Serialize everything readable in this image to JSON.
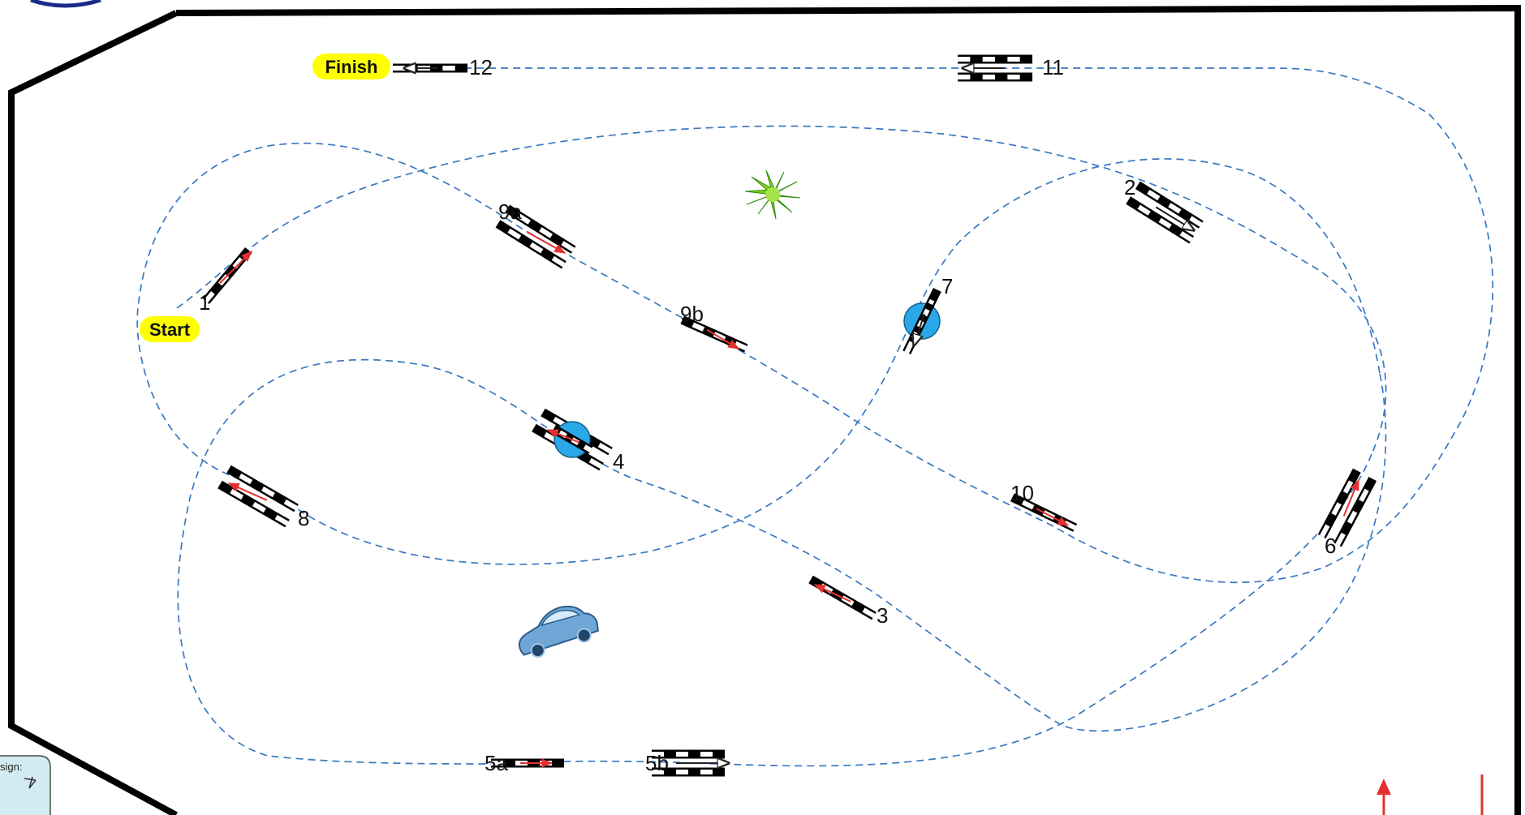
{
  "course": {
    "start_label": "Start",
    "finish_label": "Finish",
    "pill_color": "#ffff00",
    "path_color": "#3a78c2",
    "boundary_color": "#000000",
    "arrow_red": "#e53030",
    "arrow_black": "#222222",
    "pylon_color": "#2aa7e8"
  },
  "gates": [
    {
      "id": "1",
      "label": "1",
      "type": "single",
      "arrow": "red"
    },
    {
      "id": "2",
      "label": "2",
      "type": "double",
      "arrow": "black"
    },
    {
      "id": "3",
      "label": "3",
      "type": "single",
      "arrow": "red"
    },
    {
      "id": "4",
      "label": "4",
      "type": "double-pylon",
      "arrow": "red"
    },
    {
      "id": "5a",
      "label": "5a",
      "type": "single",
      "arrow": "red"
    },
    {
      "id": "5b",
      "label": "5b",
      "type": "double",
      "arrow": "black"
    },
    {
      "id": "6",
      "label": "6",
      "type": "double",
      "arrow": "red"
    },
    {
      "id": "7",
      "label": "7",
      "type": "single-pylon",
      "arrow": "black"
    },
    {
      "id": "8",
      "label": "8",
      "type": "double",
      "arrow": "red"
    },
    {
      "id": "9a",
      "label": "9a",
      "type": "double",
      "arrow": "red"
    },
    {
      "id": "9b",
      "label": "9b",
      "type": "single",
      "arrow": "red"
    },
    {
      "id": "10",
      "label": "10",
      "type": "single",
      "arrow": "red"
    },
    {
      "id": "11",
      "label": "11",
      "type": "double",
      "arrow": "black"
    },
    {
      "id": "12",
      "label": "12",
      "type": "single",
      "arrow": "black"
    }
  ],
  "decor": {
    "plant_icon": "bush-icon",
    "car_icon": "car-icon",
    "design_note": "sign:"
  }
}
